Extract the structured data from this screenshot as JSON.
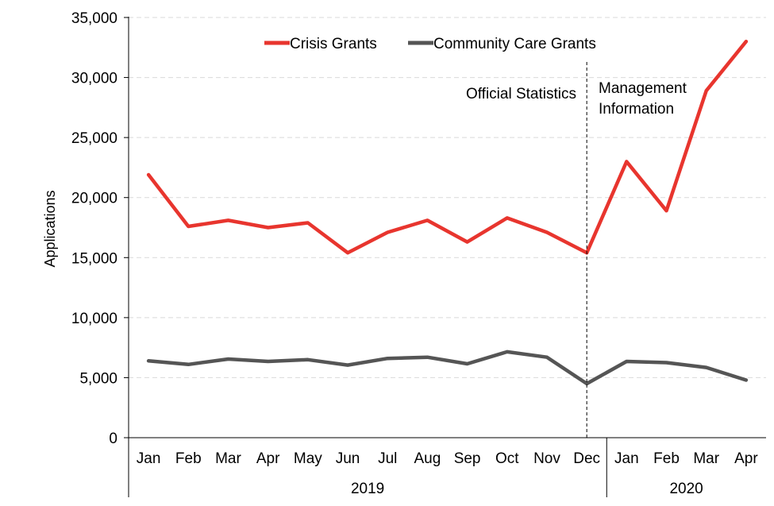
{
  "chart_data": {
    "type": "line",
    "title": "",
    "ylabel": "Applications",
    "xlabel": "",
    "ylim": [
      0,
      35000
    ],
    "y_ticks": [
      0,
      5000,
      10000,
      15000,
      20000,
      25000,
      30000,
      35000
    ],
    "y_tick_labels": [
      "0",
      "5,000",
      "10,000",
      "15,000",
      "20,000",
      "25,000",
      "30,000",
      "35,000"
    ],
    "categories": [
      "Jan",
      "Feb",
      "Mar",
      "Apr",
      "May",
      "Jun",
      "Jul",
      "Aug",
      "Sep",
      "Oct",
      "Nov",
      "Dec",
      "Jan",
      "Feb",
      "Mar",
      "Apr"
    ],
    "year_groups": [
      {
        "label": "2019",
        "count": 12
      },
      {
        "label": "2020",
        "count": 4
      }
    ],
    "series": [
      {
        "name": "Crisis Grants",
        "color": "#e8352e",
        "values": [
          21900,
          17600,
          18100,
          17500,
          17900,
          15400,
          17100,
          18100,
          16300,
          18300,
          17100,
          15400,
          23000,
          18900,
          28900,
          33000
        ]
      },
      {
        "name": "Community Care Grants",
        "color": "#555555",
        "values": [
          6400,
          6100,
          6550,
          6350,
          6500,
          6050,
          6600,
          6700,
          6150,
          7150,
          6700,
          4500,
          6350,
          6250,
          5850,
          4800
        ]
      }
    ],
    "legend_position": "top",
    "grid": "horizontal dashed",
    "divider_after_index": 11,
    "annotations": {
      "left": "Official Statistics",
      "right_line1": "Management",
      "right_line2": "Information"
    }
  }
}
